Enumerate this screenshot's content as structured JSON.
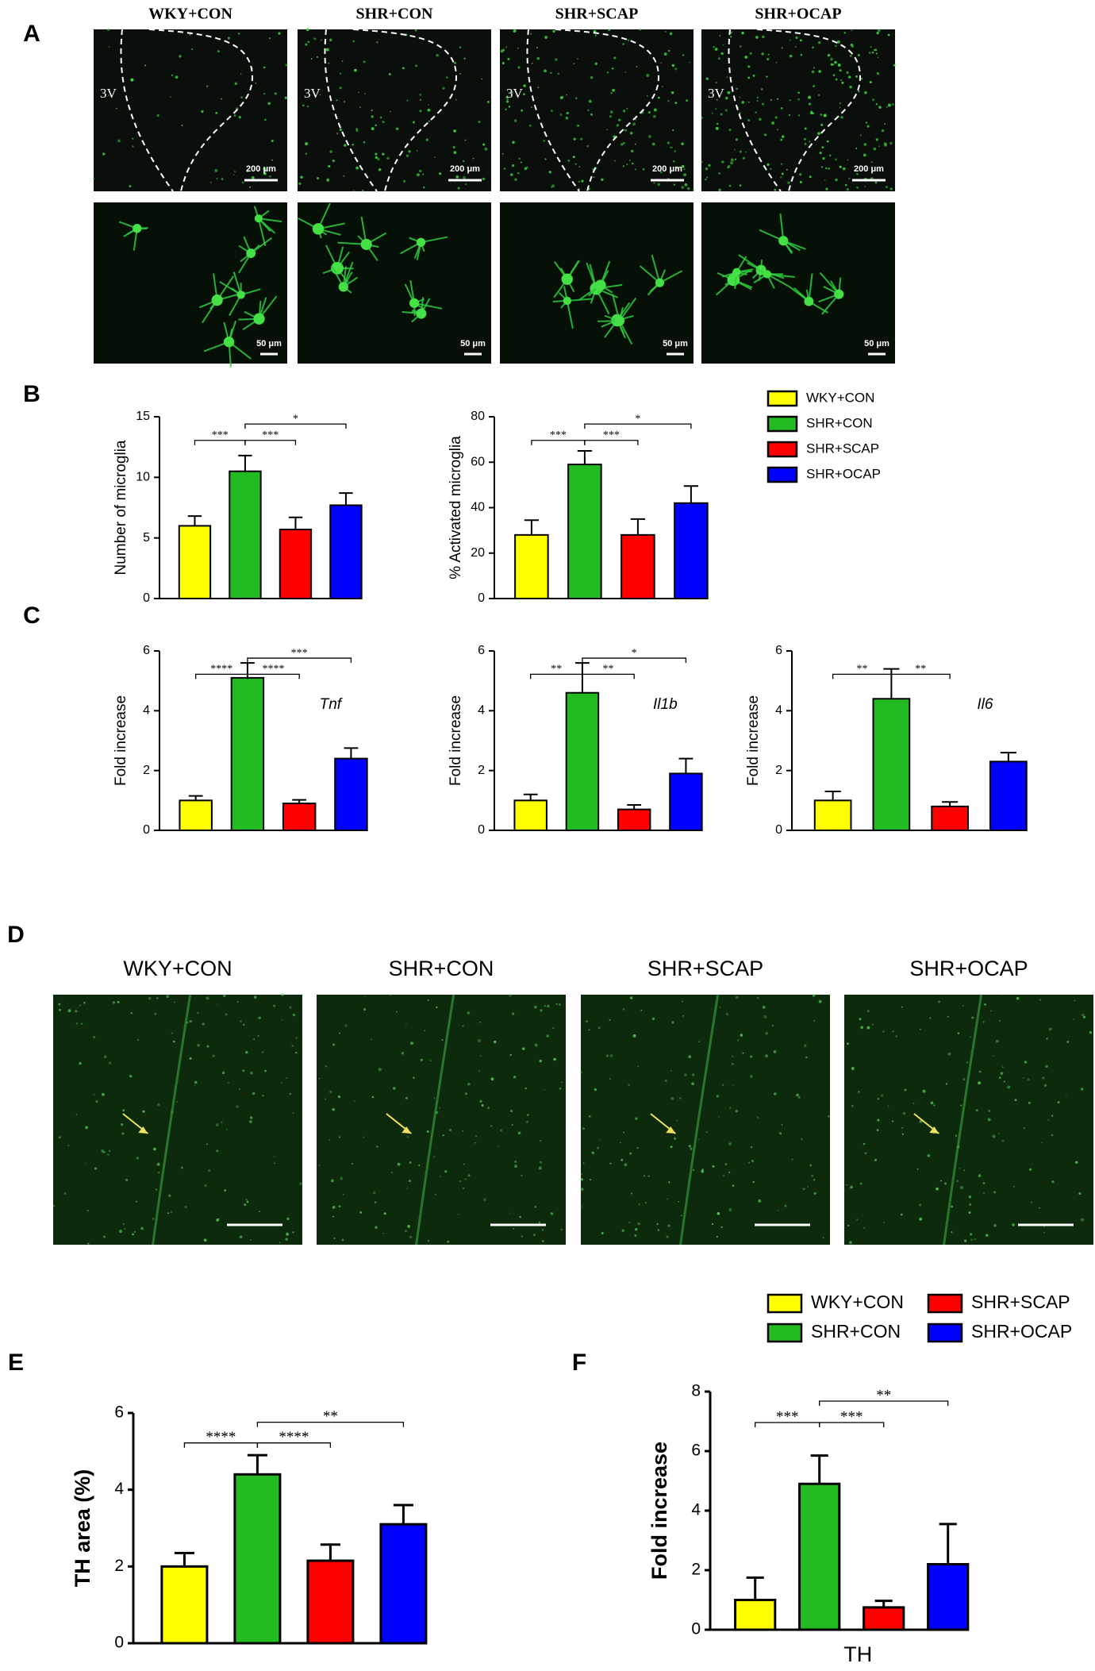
{
  "panel_labels": [
    "A",
    "B",
    "C",
    "D",
    "E",
    "F"
  ],
  "images_a": {
    "titles": [
      "WKY+CON",
      "SHR+CON",
      "SHR+SCAP",
      "SHR+OCAP"
    ],
    "region_label": "3V",
    "scale_top": "200 μm",
    "scale_bottom": "50 μm"
  },
  "images_d": {
    "titles": [
      "WKY+CON",
      "SHR+CON",
      "SHR+SCAP",
      "SHR+OCAP"
    ]
  },
  "legends": [
    {
      "items": [
        {
          "name": "WKY+CON",
          "color": "#ffff00"
        },
        {
          "name": "SHR+CON",
          "color": "#22bb22"
        },
        {
          "name": "SHR+SCAP",
          "color": "#ff0000"
        },
        {
          "name": "SHR+OCAP",
          "color": "#0000ff"
        }
      ]
    },
    {
      "items": [
        {
          "name": "WKY+CON",
          "color": "#ffff00"
        },
        {
          "name": "SHR+CON",
          "color": "#22bb22"
        },
        {
          "name": "SHR+SCAP",
          "color": "#ff0000"
        },
        {
          "name": "SHR+OCAP",
          "color": "#0000ff"
        }
      ]
    }
  ],
  "chart_data": [
    {
      "type": "bar",
      "ylabel": "Number of microglia",
      "ylim": [
        0,
        15
      ],
      "yticks": [
        0,
        5,
        10,
        15
      ],
      "values": [
        6,
        10.5,
        5.7,
        7.7
      ],
      "errors": [
        0.8,
        1.3,
        1,
        1
      ],
      "brackets": [
        {
          "pair": [
            0,
            1
          ],
          "label": "***"
        },
        {
          "pair": [
            1,
            2
          ],
          "label": "***"
        },
        {
          "pair": [
            1,
            3
          ],
          "label": "*"
        }
      ]
    },
    {
      "type": "bar",
      "ylabel": "% Activated microglia",
      "ylim": [
        0,
        80
      ],
      "yticks": [
        0,
        20,
        40,
        60,
        80
      ],
      "values": [
        28,
        59,
        28,
        42
      ],
      "errors": [
        6.5,
        6,
        7,
        7.5
      ],
      "brackets": [
        {
          "pair": [
            0,
            1
          ],
          "label": "***"
        },
        {
          "pair": [
            1,
            2
          ],
          "label": "***"
        },
        {
          "pair": [
            1,
            3
          ],
          "label": "*"
        }
      ]
    },
    {
      "type": "bar",
      "ylabel": "Fold increase",
      "annotation": "Tnf",
      "ylim": [
        0,
        6
      ],
      "yticks": [
        0,
        2,
        4,
        6
      ],
      "values": [
        1,
        5.1,
        0.9,
        2.4
      ],
      "errors": [
        0.15,
        0.5,
        0.12,
        0.35
      ],
      "brackets": [
        {
          "pair": [
            0,
            1
          ],
          "label": "****"
        },
        {
          "pair": [
            1,
            2
          ],
          "label": "****"
        },
        {
          "pair": [
            1,
            3
          ],
          "label": "***"
        }
      ]
    },
    {
      "type": "bar",
      "ylabel": "Fold increase",
      "annotation": "Il1b",
      "ylim": [
        0,
        6
      ],
      "yticks": [
        0,
        2,
        4,
        6
      ],
      "values": [
        1,
        4.6,
        0.7,
        1.9
      ],
      "errors": [
        0.2,
        1,
        0.15,
        0.5
      ],
      "brackets": [
        {
          "pair": [
            0,
            1
          ],
          "label": "**"
        },
        {
          "pair": [
            1,
            2
          ],
          "label": "**"
        },
        {
          "pair": [
            1,
            3
          ],
          "label": "*"
        }
      ]
    },
    {
      "type": "bar",
      "ylabel": "Fold increase",
      "annotation": "Il6",
      "ylim": [
        0,
        6
      ],
      "yticks": [
        0,
        2,
        4,
        6
      ],
      "values": [
        1,
        4.4,
        0.8,
        2.3
      ],
      "errors": [
        0.3,
        1,
        0.15,
        0.3
      ],
      "brackets": [
        {
          "pair": [
            0,
            1
          ],
          "label": "**"
        },
        {
          "pair": [
            1,
            2
          ],
          "label": "**"
        }
      ]
    },
    {
      "type": "bar",
      "ylabel": "TH area (%)",
      "ylim": [
        0,
        6
      ],
      "yticks": [
        0,
        2,
        4,
        6
      ],
      "values": [
        2,
        4.4,
        2.15,
        3.1
      ],
      "errors": [
        0.35,
        0.5,
        0.42,
        0.5
      ],
      "brackets": [
        {
          "pair": [
            0,
            1
          ],
          "label": "****"
        },
        {
          "pair": [
            1,
            2
          ],
          "label": "****"
        },
        {
          "pair": [
            1,
            3
          ],
          "label": "**"
        }
      ]
    },
    {
      "type": "bar",
      "ylabel": "Fold increase",
      "xlabel": "TH",
      "ylim": [
        0,
        8
      ],
      "yticks": [
        0,
        2,
        4,
        6,
        8
      ],
      "values": [
        1,
        4.9,
        0.75,
        2.2
      ],
      "errors": [
        0.75,
        0.95,
        0.22,
        1.35
      ],
      "brackets": [
        {
          "pair": [
            0,
            1
          ],
          "label": "***"
        },
        {
          "pair": [
            1,
            2
          ],
          "label": "***"
        },
        {
          "pair": [
            1,
            3
          ],
          "label": "**"
        }
      ]
    }
  ]
}
